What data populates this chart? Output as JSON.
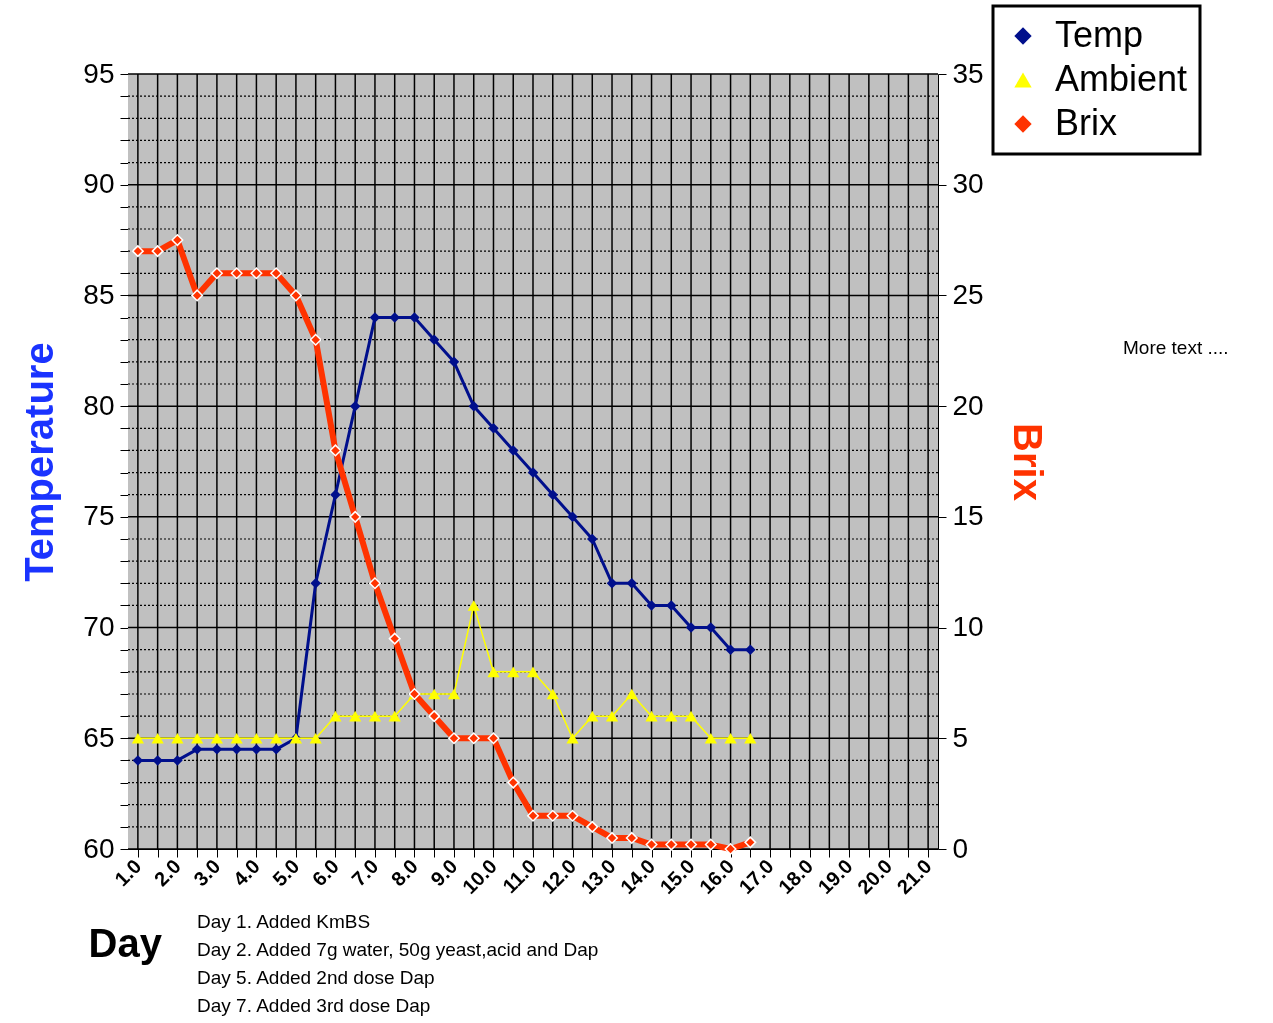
{
  "chart_data": {
    "type": "line",
    "xlabel": "Day",
    "ylabel": "Temperature",
    "y2label": "Brix",
    "categories": [
      "1.0",
      null,
      "2.0",
      null,
      "3.0",
      null,
      "4.0",
      null,
      "5.0",
      null,
      "6.0",
      null,
      "7.0",
      null,
      "8.0",
      null,
      "9.0",
      null,
      "10.0",
      null,
      "11.0",
      null,
      "12.0",
      null,
      "13.0",
      null,
      "14.0",
      null,
      "15.0",
      null,
      "16.0",
      null,
      "17.0",
      null,
      "18.0",
      null,
      "19.0",
      null,
      "20.0",
      null,
      "21.0"
    ],
    "series": [
      {
        "name": "Temp",
        "color": "#000f8c",
        "marker": "diamond",
        "values": [
          64,
          64,
          64,
          64.5,
          64.5,
          64.5,
          64.5,
          64.5,
          65,
          72,
          76,
          80,
          84,
          84,
          84,
          83,
          82,
          80,
          79,
          78,
          77,
          76,
          75,
          74,
          72,
          72,
          71,
          71,
          70,
          70,
          69,
          69,
          null,
          null,
          null,
          null,
          null,
          null,
          null,
          null,
          null
        ]
      },
      {
        "name": "Ambient",
        "color": "#ffff00",
        "marker": "triangle",
        "values": [
          65,
          65,
          65,
          65,
          65,
          65,
          65,
          65,
          65,
          65,
          66,
          66,
          66,
          66,
          67,
          67,
          67,
          71,
          68,
          68,
          68,
          67,
          65,
          66,
          66,
          67,
          66,
          66,
          66,
          65,
          65,
          65,
          null,
          null,
          null,
          null,
          null,
          null,
          null,
          null,
          null
        ]
      },
      {
        "name": "Brix",
        "color": "#ff3300",
        "marker": "diamond",
        "axis": "y2",
        "values": [
          27,
          27,
          27.5,
          25,
          26,
          26,
          26,
          26,
          25,
          23,
          18,
          15,
          12,
          9.5,
          7,
          6,
          5,
          5,
          5,
          3,
          1.5,
          1.5,
          1.5,
          1,
          0.5,
          0.5,
          0.2,
          0.2,
          0.2,
          0.2,
          0,
          0.3,
          null,
          null,
          null,
          null,
          null,
          null,
          null,
          null,
          null
        ]
      }
    ],
    "ylim": [
      60,
      95
    ],
    "yticks": [
      60,
      {
        "value": 61,
        "label": null
      },
      {
        "value": 62,
        "label": null
      },
      {
        "value": 63,
        "label": null
      },
      {
        "value": 64,
        "label": null
      },
      65,
      {
        "value": 66,
        "label": null
      },
      {
        "value": 67,
        "label": null
      },
      {
        "value": 68,
        "label": null
      },
      {
        "value": 69,
        "label": null
      },
      70,
      {
        "value": 71,
        "label": null
      },
      {
        "value": 72,
        "label": null
      },
      {
        "value": 73,
        "label": null
      },
      {
        "value": 74,
        "label": null
      },
      75,
      {
        "value": 76,
        "label": null
      },
      {
        "value": 77,
        "label": null
      },
      {
        "value": 78,
        "label": null
      },
      {
        "value": 79,
        "label": null
      },
      80,
      {
        "value": 81,
        "label": null
      },
      {
        "value": 82,
        "label": null
      },
      {
        "value": 83,
        "label": null
      },
      {
        "value": 84,
        "label": null
      },
      85,
      {
        "value": 86,
        "label": null
      },
      {
        "value": 87,
        "label": null
      },
      {
        "value": 88,
        "label": null
      },
      {
        "value": 89,
        "label": null
      },
      90,
      {
        "value": 91,
        "label": null
      },
      {
        "value": 92,
        "label": null
      },
      {
        "value": 93,
        "label": null
      },
      {
        "value": 94,
        "label": null
      },
      95
    ],
    "y2lim": [
      0,
      35
    ],
    "y2ticks": [
      0,
      5,
      10,
      15,
      20,
      25,
      30,
      35
    ],
    "grid": true,
    "legend": "top right",
    "line_style": "solid",
    "annotations": [
      "More text .... ",
      "Day 1. Added KmBS",
      "Day 2. Added 7g water, 50g yeast,acid and Dap",
      "Day 5. Added 2nd dose Dap",
      "Day 7. Added 3rd dose Dap"
    ]
  }
}
